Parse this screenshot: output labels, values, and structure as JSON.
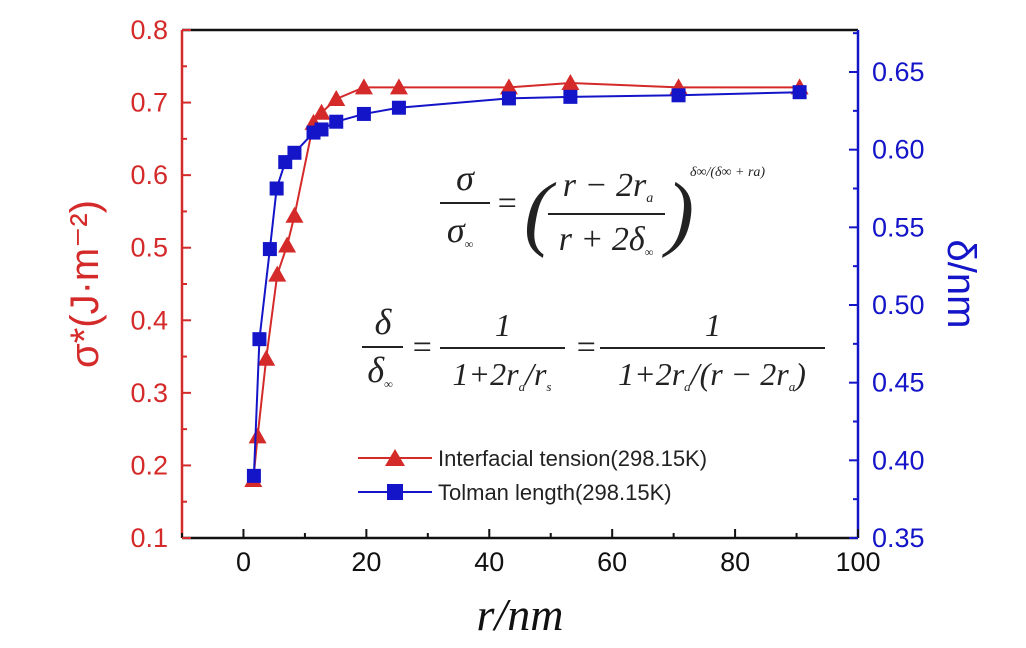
{
  "chart_data": {
    "type": "line",
    "title": "",
    "xlabel": "r/nm",
    "ylabel_left": "σ*(J·m⁻²)",
    "ylabel_right": "δ/nm",
    "xlim": [
      -10,
      100
    ],
    "ylim_left": [
      0.1,
      0.8
    ],
    "ylim_right": [
      0.35,
      0.677
    ],
    "x_ticks": [
      "0",
      "20",
      "40",
      "60",
      "80",
      "100"
    ],
    "y_left_ticks": [
      "0.1",
      "0.2",
      "0.3",
      "0.4",
      "0.5",
      "0.6",
      "0.7",
      "0.8"
    ],
    "y_right_ticks": [
      "0.35",
      "0.40",
      "0.45",
      "0.50",
      "0.55",
      "0.60",
      "0.65"
    ],
    "grid": false,
    "legend_placement": "bottom-right",
    "colors": {
      "left": "#d42a2a",
      "right": "#1414c8",
      "axis": "#111111"
    },
    "series": [
      {
        "name": "Interfacial tension(298.15K)",
        "axis": "left",
        "marker": "triangle",
        "x": [
          1.6,
          2.3,
          3.7,
          5.5,
          7.1,
          8.3,
          11.4,
          12.7,
          15.1,
          19.6,
          25.3,
          43.2,
          53.2,
          70.8,
          90.5
        ],
        "y": [
          0.18,
          0.24,
          0.347,
          0.463,
          0.503,
          0.544,
          0.672,
          0.686,
          0.705,
          0.721,
          0.721,
          0.721,
          0.727,
          0.721,
          0.721
        ]
      },
      {
        "name": "Tolman length(298.15K)",
        "axis": "right",
        "marker": "square",
        "x": [
          1.7,
          2.6,
          4.3,
          5.4,
          6.8,
          8.3,
          11.4,
          12.7,
          15.1,
          19.6,
          25.3,
          43.2,
          53.2,
          70.8,
          90.5
        ],
        "y": [
          0.39,
          0.478,
          0.536,
          0.575,
          0.592,
          0.598,
          0.611,
          0.613,
          0.618,
          0.623,
          0.627,
          0.633,
          0.634,
          0.635,
          0.637
        ]
      }
    ],
    "annotations": {
      "eq1": {
        "lhs_num": "σ",
        "lhs_den": "σ",
        "lhs_den_sub": "∞",
        "equals": "=",
        "open": "(",
        "close": ")",
        "num": "r − 2r",
        "num_sub": "a",
        "den": "r + 2δ",
        "den_sub": "∞",
        "exponent": "δ∞/(δ∞ + ra)"
      },
      "eq2": {
        "lhs_num": "δ",
        "lhs_den": "δ",
        "lhs_den_sub": "∞",
        "equals": "=",
        "f1_num": "1",
        "f1_den": "1+2r",
        "f1_den_sub": "a",
        "f1_den_rest": "/r",
        "f1_den_sub2": "s",
        "f2_num": "1",
        "f2_den": "1+2r",
        "f2_den_sub": "a",
        "f2_den_rest": "/(r − 2r",
        "f2_den_sub2": "a",
        "f2_den_end": ")"
      }
    }
  }
}
